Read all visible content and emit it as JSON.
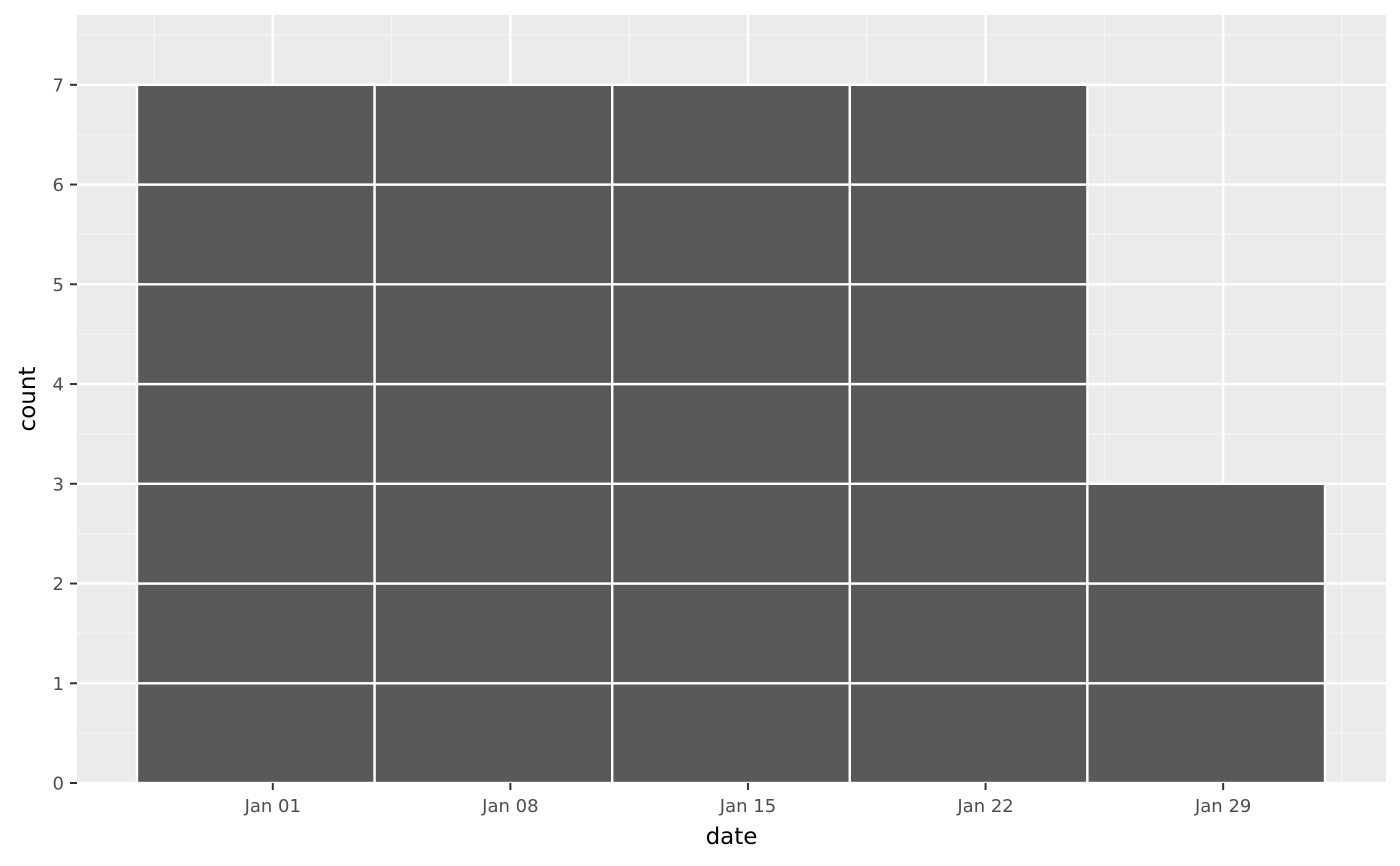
{
  "chart_data": {
    "type": "bar",
    "chart_kind": "stacked unit-block histogram",
    "xlabel": "date",
    "ylabel": "count",
    "x_ticks": [
      "Jan 01",
      "Jan 08",
      "Jan 15",
      "Jan 22",
      "Jan 29"
    ],
    "y_ticks": [
      "0",
      "1",
      "2",
      "3",
      "4",
      "5",
      "6",
      "7"
    ],
    "ylim": [
      0,
      7.7
    ],
    "xlim": [
      "2016-12-27",
      "2018-02-01"
    ],
    "bin_width_days": 7,
    "categories": [
      "Jan 01",
      "Jan 08",
      "Jan 15",
      "Jan 22",
      "Jan 29"
    ],
    "bins": [
      {
        "start": "2016-12-28",
        "end": "2017-01-04",
        "count": 7
      },
      {
        "start": "2017-01-04",
        "end": "2017-01-11",
        "count": 7
      },
      {
        "start": "2017-01-11",
        "end": "2017-01-18",
        "count": 7
      },
      {
        "start": "2017-01-18",
        "end": "2017-01-25",
        "count": 7
      },
      {
        "start": "2017-01-25",
        "end": "2017-02-01",
        "count": 3
      }
    ],
    "values": [
      7,
      7,
      7,
      7,
      3
    ],
    "grid": true,
    "colors": {
      "panel_background": "#ebebeb",
      "grid_major": "#ffffff",
      "grid_minor": "#f5f5f5",
      "bar_fill": "#595959",
      "bar_outline": "#ffffff",
      "axis_text": "#4d4d4d",
      "tick_mark": "#333333"
    }
  }
}
